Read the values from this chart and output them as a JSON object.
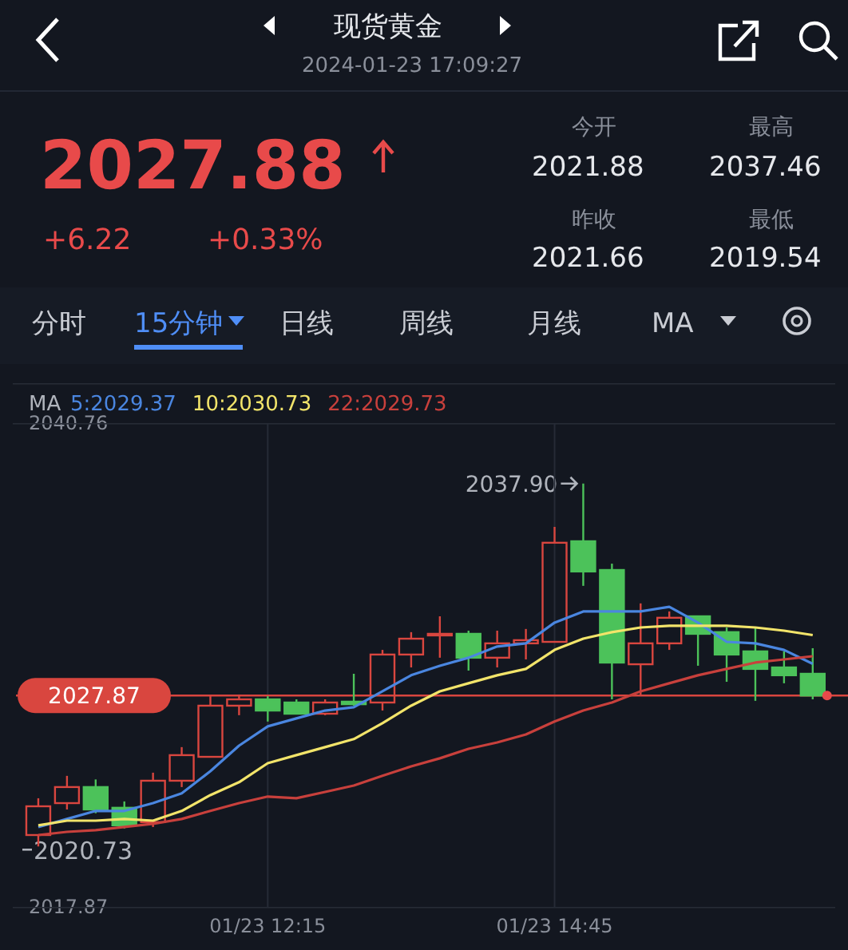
{
  "chart_data": {
    "type": "candlestick",
    "title": "现货黄金",
    "subtitle": "2024-01-23 17:09:27",
    "annotations": [
      "2027.88",
      "+6.22",
      "+0.33%",
      "今开",
      "2021.88",
      "最高",
      "2037.46",
      "昨收",
      "2021.66",
      "最低",
      "2019.54",
      "分时",
      "15分钟",
      "日线",
      "周线",
      "月线",
      "MA",
      "MA",
      "2037.90",
      "2020.73"
    ],
    "categories": [
      null,
      null,
      null,
      null,
      null,
      null,
      null,
      null,
      "01/23 12:15",
      null,
      null,
      null,
      null,
      null,
      null,
      null,
      null,
      null,
      "01/23 14:45",
      null,
      null,
      null,
      null,
      null,
      null,
      null,
      null,
      null
    ],
    "ohlc": [
      [
        2021.27,
        2023.01,
        2020.73,
        2022.63
      ],
      [
        2022.78,
        2024.07,
        2022.48,
        2023.54
      ],
      [
        2023.54,
        2023.9,
        2022.3,
        2022.48
      ],
      [
        2022.56,
        2022.86,
        2021.58,
        2021.73
      ],
      [
        2021.88,
        2024.22,
        2021.65,
        2023.84
      ],
      [
        2023.84,
        2025.43,
        2023.54,
        2025.05
      ],
      [
        2024.97,
        2027.84,
        2024.97,
        2027.39
      ],
      [
        2027.39,
        2027.92,
        2026.94,
        2027.69
      ],
      [
        2027.69,
        2027.84,
        2026.64,
        2027.16
      ],
      [
        2027.54,
        2027.69,
        2027.01,
        2027.01
      ],
      [
        2027.01,
        2027.69,
        2026.94,
        2027.54
      ],
      [
        2027.58,
        2028.9,
        2027.39,
        2027.46
      ],
      [
        2027.54,
        2030.03,
        2027.16,
        2029.81
      ],
      [
        2029.81,
        2030.87,
        2029.2,
        2030.56
      ],
      [
        2030.72,
        2031.62,
        2029.66,
        2030.79
      ],
      [
        2030.79,
        2030.94,
        2029.05,
        2029.66
      ],
      [
        2029.66,
        2030.94,
        2029.2,
        2030.34
      ],
      [
        2030.34,
        2031.02,
        2029.58,
        2030.49
      ],
      [
        2030.41,
        2035.85,
        2030.41,
        2035.1
      ],
      [
        2035.17,
        2037.9,
        2033.06,
        2033.74
      ],
      [
        2033.81,
        2034.11,
        2027.69,
        2029.43
      ],
      [
        2029.35,
        2032.23,
        2027.92,
        2030.34
      ],
      [
        2030.34,
        2031.85,
        2030.03,
        2031.55
      ],
      [
        2031.62,
        2031.62,
        2029.28,
        2030.79
      ],
      [
        2030.87,
        2031.09,
        2028.52,
        2029.81
      ],
      [
        2029.96,
        2031.09,
        2027.62,
        2029.13
      ],
      [
        2029.2,
        2029.96,
        2028.45,
        2028.83
      ],
      [
        2028.9,
        2030.11,
        2027.69,
        2027.87
      ]
    ],
    "series": [
      {
        "name": "5:2029.37",
        "type": "line",
        "color": "#4a86e0",
        "values": [
          2021.65,
          2022.03,
          2022.41,
          2022.41,
          2022.78,
          2023.24,
          2024.29,
          2025.5,
          2026.41,
          2026.79,
          2027.16,
          2027.32,
          2028.07,
          2028.83,
          2029.28,
          2029.66,
          2030.19,
          2030.34,
          2031.32,
          2031.85,
          2031.85,
          2031.85,
          2032.07,
          2031.32,
          2030.41,
          2030.34,
          2030.03,
          2029.37
        ]
      },
      {
        "name": "10:2030.73",
        "type": "line",
        "color": "#f2e46a",
        "values": [
          2021.73,
          2021.95,
          2021.95,
          2022.03,
          2021.95,
          2022.41,
          2023.16,
          2023.77,
          2024.67,
          2025.05,
          2025.43,
          2025.81,
          2026.56,
          2027.39,
          2028.07,
          2028.45,
          2028.83,
          2029.13,
          2030.03,
          2030.56,
          2030.87,
          2031.09,
          2031.17,
          2031.17,
          2031.17,
          2031.09,
          2030.94,
          2030.73
        ]
      },
      {
        "name": "22:2029.73",
        "type": "line",
        "color": "#c8403c",
        "values": [
          2021.27,
          2021.42,
          2021.5,
          2021.65,
          2021.8,
          2022.03,
          2022.41,
          2022.78,
          2023.09,
          2023.01,
          2023.31,
          2023.61,
          2024.07,
          2024.52,
          2024.9,
          2025.35,
          2025.65,
          2026.03,
          2026.64,
          2027.16,
          2027.54,
          2028.07,
          2028.45,
          2028.83,
          2029.13,
          2029.43,
          2029.58,
          2029.73
        ]
      }
    ],
    "ylim": [
      2017.87,
      2040.76
    ],
    "yticks": [
      2040.76,
      2017.87
    ],
    "ref_lines": [
      {
        "axis": "y",
        "value": 2027.87,
        "label": "2027.87",
        "color": "#d9463f"
      }
    ],
    "grid": "x",
    "legend": "top"
  }
}
